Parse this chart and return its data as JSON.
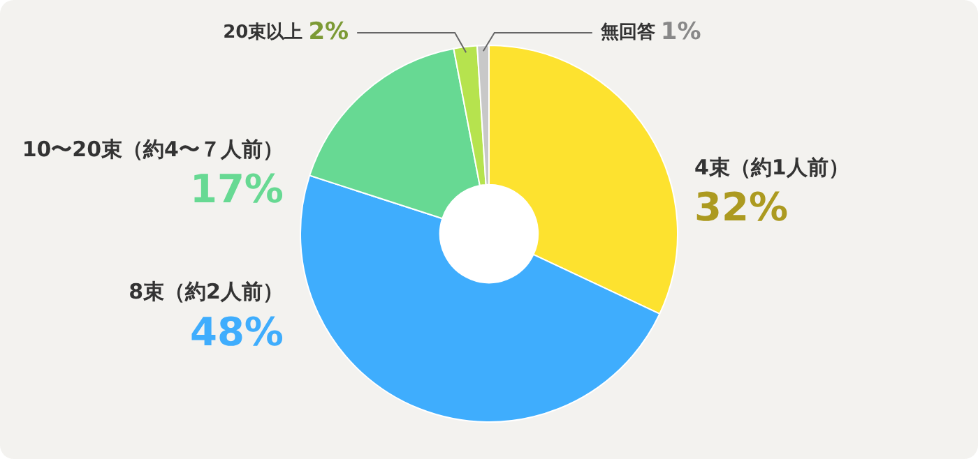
{
  "chart_data": {
    "type": "donut",
    "categories": [
      "4束（約1人前）",
      "8束（約2人前）",
      "10〜20束（約4〜７人前）",
      "20束以上",
      "無回答"
    ],
    "values": [
      32,
      48,
      17,
      2,
      1
    ],
    "colors": [
      "#fde22f",
      "#3fadfd",
      "#67d993",
      "#b6e34e",
      "#c8c8c8"
    ],
    "value_labels": [
      "32%",
      "48%",
      "17%",
      "2%",
      "1%"
    ],
    "legend": false
  }
}
